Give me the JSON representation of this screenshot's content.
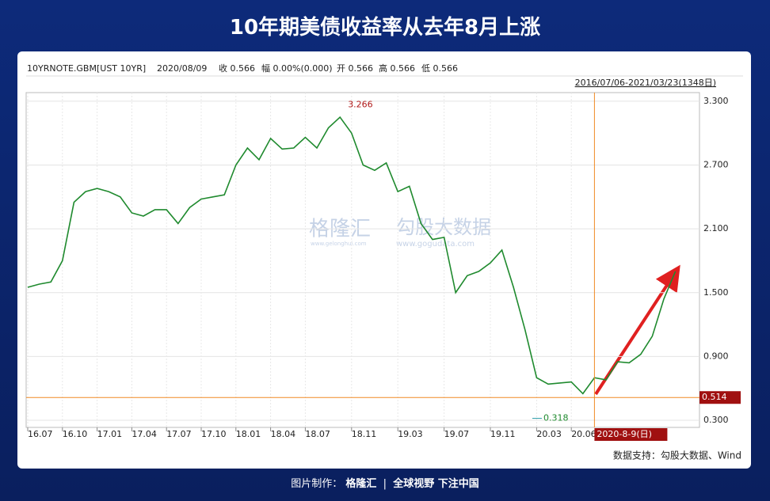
{
  "header": {
    "title": "10年期美债收益率从去年8月上涨"
  },
  "info": {
    "symbol": "10YRNOTE.GBM[UST 10YR]",
    "date": "2020/08/09",
    "close": "收 0.566",
    "change": "幅 0.00%(0.000)",
    "open": "开 0.566",
    "high": "高 0.566",
    "low": "低 0.566",
    "range": "2016/07/06-2021/03/23(1348日)"
  },
  "chart_data": {
    "type": "line",
    "color": "#1f8a2e",
    "categories": [
      "16.07",
      null,
      null,
      "16.10",
      null,
      null,
      "17.01",
      null,
      null,
      "17.04",
      null,
      null,
      "17.07",
      null,
      null,
      "17.10",
      null,
      null,
      "18.01",
      null,
      null,
      "18.04",
      null,
      null,
      "18.07",
      null,
      null,
      null,
      "18.11",
      null,
      null,
      null,
      "19.03",
      null,
      null,
      null,
      "19.07",
      null,
      null,
      null,
      "19.11",
      null,
      null,
      null,
      "20.03",
      null,
      null,
      "20.06",
      null,
      null,
      null,
      null,
      null,
      null,
      null,
      null,
      null
    ],
    "values": [
      1.55,
      1.58,
      1.6,
      1.8,
      2.35,
      2.45,
      2.48,
      2.45,
      2.4,
      2.25,
      2.22,
      2.28,
      2.28,
      2.15,
      2.3,
      2.38,
      2.4,
      2.42,
      2.7,
      2.86,
      2.75,
      2.95,
      2.85,
      2.86,
      2.96,
      2.86,
      3.05,
      3.15,
      3.0,
      2.7,
      2.65,
      2.72,
      2.45,
      2.5,
      2.15,
      2.0,
      2.02,
      1.5,
      1.66,
      1.7,
      1.78,
      1.9,
      1.55,
      1.15,
      0.7,
      0.64,
      0.65,
      0.66,
      0.55,
      0.7,
      0.68,
      0.85,
      0.84,
      0.92,
      1.09,
      1.44,
      1.7
    ],
    "ylim": [
      0.233,
      3.381
    ],
    "yticks": [
      {
        "value": 0.3,
        "label": "0.300"
      },
      {
        "value": 0.9,
        "label": "0.900"
      },
      {
        "value": 1.5,
        "label": "1.500"
      },
      {
        "value": 2.1,
        "label": "2.100"
      },
      {
        "value": 2.7,
        "label": "2.700"
      },
      {
        "value": 3.3,
        "label": "3.300"
      }
    ],
    "grid": true,
    "max_label": 3.266,
    "min_label": 0.318,
    "hline": {
      "value": 0.514,
      "label": "0.514"
    },
    "cursor_date": "2020-8-9(日)"
  },
  "watermark": {
    "brand": "格隆汇",
    "brand_url": "www.gelonghui.com",
    "data": "勾股大数据",
    "data_url": "www.gogudata.com"
  },
  "source": "数据支持：勾股大数据、Wind",
  "footer": {
    "made_by": "图片制作：",
    "brand": "格隆汇",
    "slogan": "全球视野 下注中国"
  }
}
